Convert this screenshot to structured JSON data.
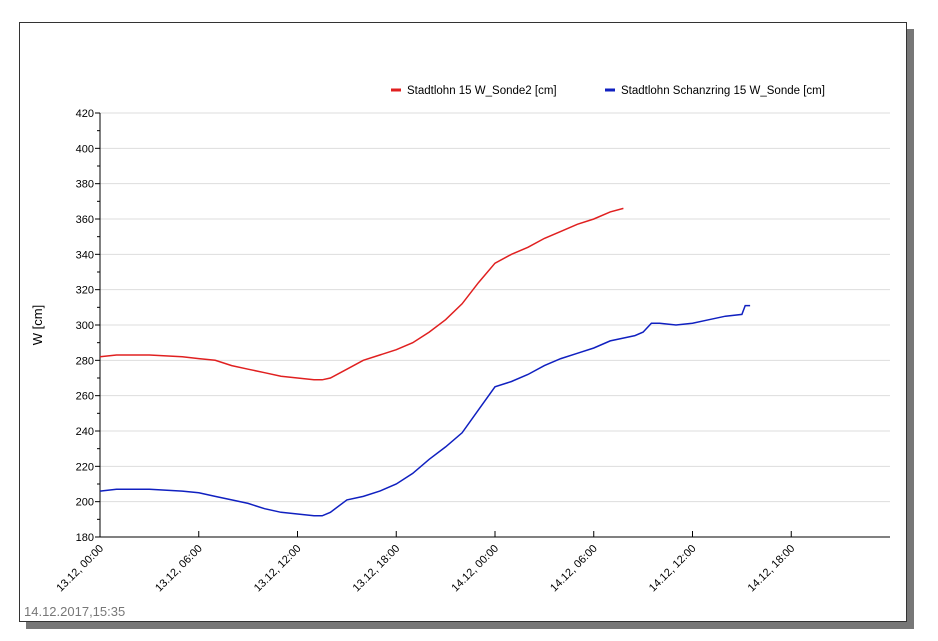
{
  "chart_data": {
    "type": "line",
    "title": "",
    "ylabel": "W [cm]",
    "xlabel": "",
    "ylim": [
      180,
      420
    ],
    "yticks": [
      180,
      200,
      220,
      240,
      260,
      280,
      300,
      320,
      340,
      360,
      380,
      400,
      420
    ],
    "xlim_hours": [
      0,
      48
    ],
    "xticks": [
      {
        "h": 0,
        "label": "13.12, 00:00"
      },
      {
        "h": 6,
        "label": "13.12, 06:00"
      },
      {
        "h": 12,
        "label": "13.12, 12:00"
      },
      {
        "h": 18,
        "label": "13.12, 18:00"
      },
      {
        "h": 24,
        "label": "14.12, 00:00"
      },
      {
        "h": 30,
        "label": "14.12, 06:00"
      },
      {
        "h": 36,
        "label": "14.12, 12:00"
      },
      {
        "h": 42,
        "label": "14.12, 18:00"
      }
    ],
    "grid": true,
    "legend": "top-right",
    "series": [
      {
        "name": "Stadtlohn  15 W_Sonde2 [cm]",
        "color": "#e02020",
        "x": [
          0,
          1,
          3,
          5,
          6,
          7,
          8,
          9,
          10,
          11,
          12,
          13,
          13.5,
          14,
          15,
          16,
          17,
          18,
          19,
          20,
          21,
          22,
          23,
          24,
          25,
          26,
          27,
          28,
          29,
          30,
          31,
          31.8
        ],
        "y": [
          282,
          283,
          283,
          282,
          281,
          280,
          277,
          275,
          273,
          271,
          270,
          269,
          269,
          270,
          275,
          280,
          283,
          286,
          290,
          296,
          303,
          312,
          324,
          335,
          340,
          344,
          349,
          353,
          357,
          360,
          364,
          366
        ]
      },
      {
        "name": "Stadtlohn Schanzring  15 W_Sonde [cm]",
        "color": "#1020c0",
        "x": [
          0,
          1,
          3,
          5,
          6,
          7,
          8,
          9,
          10,
          11,
          12,
          13,
          13.5,
          14,
          15,
          16,
          17,
          18,
          19,
          20,
          21,
          22,
          23,
          24,
          25,
          26,
          27,
          28,
          29,
          30,
          31,
          32,
          32.5,
          33,
          33.5,
          34,
          35,
          36,
          37,
          38,
          39,
          39.2,
          39.5
        ],
        "y": [
          206,
          207,
          207,
          206,
          205,
          203,
          201,
          199,
          196,
          194,
          193,
          192,
          192,
          194,
          201,
          203,
          206,
          210,
          216,
          224,
          231,
          239,
          252,
          265,
          268,
          272,
          277,
          281,
          284,
          287,
          291,
          293,
          294,
          296,
          301,
          301,
          300,
          301,
          303,
          305,
          306,
          311,
          311
        ]
      }
    ]
  },
  "timestamp": "14.12.2017,15:35"
}
